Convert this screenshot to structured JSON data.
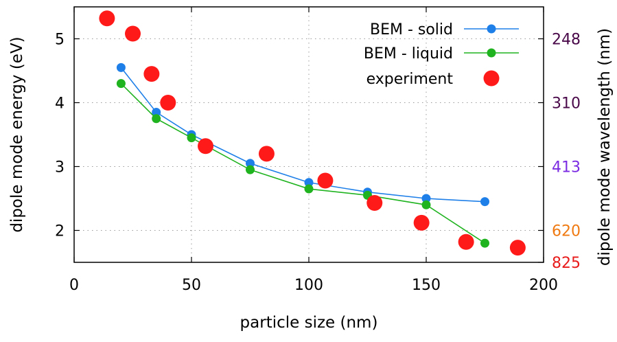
{
  "chart_data": {
    "type": "scatter",
    "xlabel": "particle size (nm)",
    "ylabel": "dipole mode energy (eV)",
    "y2label": "dipole mode wavelength (nm)",
    "xlim": [
      0,
      200
    ],
    "ylim": [
      1.5,
      5.5
    ],
    "xticks": [
      0,
      50,
      100,
      150,
      200
    ],
    "yticks": [
      2,
      3,
      4,
      5
    ],
    "grid": true,
    "legend_position": "top-right",
    "right_ticks": [
      {
        "label": "248",
        "energy": 5.0,
        "color": "#4a0a4a"
      },
      {
        "label": "310",
        "energy": 4.0,
        "color": "#4a0a4a"
      },
      {
        "label": "413",
        "energy": 3.0,
        "color": "#7b2be2"
      },
      {
        "label": "620",
        "energy": 2.0,
        "color": "#f07a12"
      },
      {
        "label": "825",
        "energy": 1.5,
        "color": "#e81a1a"
      }
    ],
    "series": [
      {
        "name": "BEM - solid",
        "style": "line+marker",
        "color": "#1e7fe8",
        "x": [
          20,
          35,
          50,
          75,
          100,
          125,
          150,
          175
        ],
        "y": [
          4.55,
          3.85,
          3.5,
          3.05,
          2.75,
          2.6,
          2.5,
          2.45
        ]
      },
      {
        "name": "BEM - liquid",
        "style": "line+marker",
        "color": "#1fb31f",
        "x": [
          20,
          35,
          50,
          75,
          100,
          125,
          150,
          175
        ],
        "y": [
          4.3,
          3.75,
          3.45,
          2.95,
          2.65,
          2.55,
          2.4,
          1.8
        ]
      },
      {
        "name": "experiment",
        "style": "marker",
        "color": "#ff1a1a",
        "x": [
          14,
          25,
          33,
          40,
          56,
          82,
          107,
          128,
          148,
          167,
          189
        ],
        "y": [
          5.32,
          5.08,
          4.45,
          4.0,
          3.32,
          3.2,
          2.78,
          2.43,
          2.12,
          1.82,
          1.73
        ]
      }
    ]
  }
}
